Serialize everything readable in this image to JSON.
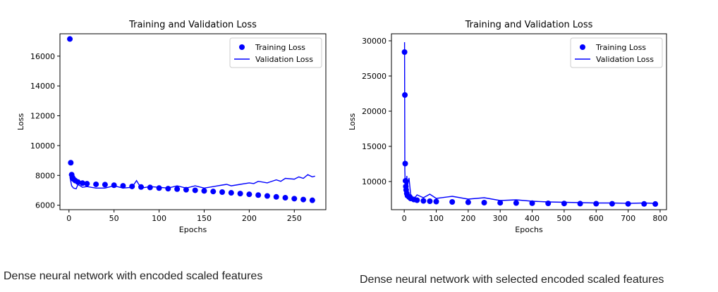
{
  "captions": {
    "left": "Dense neural network with encoded scaled features",
    "right": "Dense neural network with selected encoded scaled features"
  },
  "colors": {
    "series": "#0000ff",
    "axis": "#000000"
  },
  "chart_data": [
    {
      "type": "line",
      "title": "Training and Validation Loss",
      "xlabel": "Epochs",
      "ylabel": "Loss",
      "xlim": [
        -10,
        285
      ],
      "ylim": [
        5700,
        17500
      ],
      "xticks": [
        0,
        50,
        100,
        150,
        200,
        250
      ],
      "yticks": [
        6000,
        8000,
        10000,
        12000,
        14000,
        16000
      ],
      "grid": false,
      "legend_position": "top-right",
      "series": [
        {
          "name": "Training Loss",
          "style": "markers",
          "x": [
            1,
            2,
            3,
            4,
            5,
            7,
            10,
            15,
            20,
            30,
            40,
            50,
            60,
            70,
            80,
            90,
            100,
            110,
            120,
            130,
            140,
            150,
            160,
            170,
            180,
            190,
            200,
            210,
            220,
            230,
            240,
            250,
            260,
            270
          ],
          "y": [
            17150,
            8850,
            8050,
            7850,
            7750,
            7650,
            7550,
            7480,
            7440,
            7400,
            7380,
            7340,
            7300,
            7260,
            7220,
            7190,
            7150,
            7110,
            7080,
            7040,
            7000,
            6960,
            6920,
            6880,
            6830,
            6780,
            6730,
            6680,
            6620,
            6560,
            6500,
            6440,
            6380,
            6330
          ]
        },
        {
          "name": "Validation Loss",
          "style": "line",
          "x": [
            1,
            3,
            5,
            8,
            10,
            15,
            20,
            30,
            40,
            50,
            60,
            70,
            75,
            80,
            90,
            100,
            110,
            120,
            130,
            140,
            150,
            160,
            170,
            175,
            180,
            190,
            200,
            205,
            210,
            220,
            230,
            235,
            240,
            250,
            255,
            260,
            265,
            270,
            273
          ],
          "y": [
            7900,
            7300,
            7150,
            7100,
            7400,
            7200,
            7250,
            7150,
            7150,
            7300,
            7150,
            7200,
            7650,
            7150,
            7250,
            7200,
            7150,
            7300,
            7150,
            7300,
            7150,
            7250,
            7350,
            7400,
            7300,
            7400,
            7500,
            7450,
            7600,
            7500,
            7700,
            7600,
            7800,
            7750,
            7900,
            7800,
            8050,
            7900,
            7950
          ]
        }
      ]
    },
    {
      "type": "line",
      "title": "Training and Validation Loss",
      "xlabel": "Epochs",
      "ylabel": "Loss",
      "xlim": [
        -40,
        820
      ],
      "ylim": [
        6000,
        31000
      ],
      "xticks": [
        0,
        100,
        200,
        300,
        400,
        500,
        600,
        700,
        800
      ],
      "yticks": [
        10000,
        15000,
        20000,
        25000,
        30000
      ],
      "grid": false,
      "legend_position": "top-right",
      "series": [
        {
          "name": "Training Loss",
          "style": "markers",
          "x": [
            1,
            2,
            3,
            4,
            5,
            6,
            8,
            10,
            15,
            20,
            30,
            40,
            60,
            80,
            100,
            150,
            200,
            250,
            300,
            350,
            400,
            450,
            500,
            550,
            600,
            650,
            700,
            750,
            785
          ],
          "y": [
            28400,
            22300,
            12550,
            10100,
            9300,
            8800,
            8300,
            8000,
            7800,
            7600,
            7450,
            7350,
            7250,
            7200,
            7150,
            7100,
            7050,
            7000,
            6980,
            6950,
            6920,
            6900,
            6880,
            6860,
            6850,
            6840,
            6830,
            6820,
            6810
          ]
        },
        {
          "name": "Validation Loss",
          "style": "line",
          "x": [
            1,
            2,
            3,
            5,
            8,
            10,
            15,
            20,
            25,
            30,
            40,
            60,
            80,
            100,
            150,
            200,
            250,
            300,
            350,
            400,
            450,
            500,
            550,
            600,
            650,
            700,
            750,
            785
          ],
          "y": [
            29800,
            11500,
            9800,
            8500,
            10800,
            9300,
            10500,
            8200,
            7900,
            7500,
            8100,
            7700,
            8200,
            7600,
            7900,
            7500,
            7700,
            7300,
            7400,
            7200,
            7100,
            7050,
            7000,
            6950,
            6950,
            6900,
            6950,
            6900
          ]
        }
      ]
    }
  ]
}
